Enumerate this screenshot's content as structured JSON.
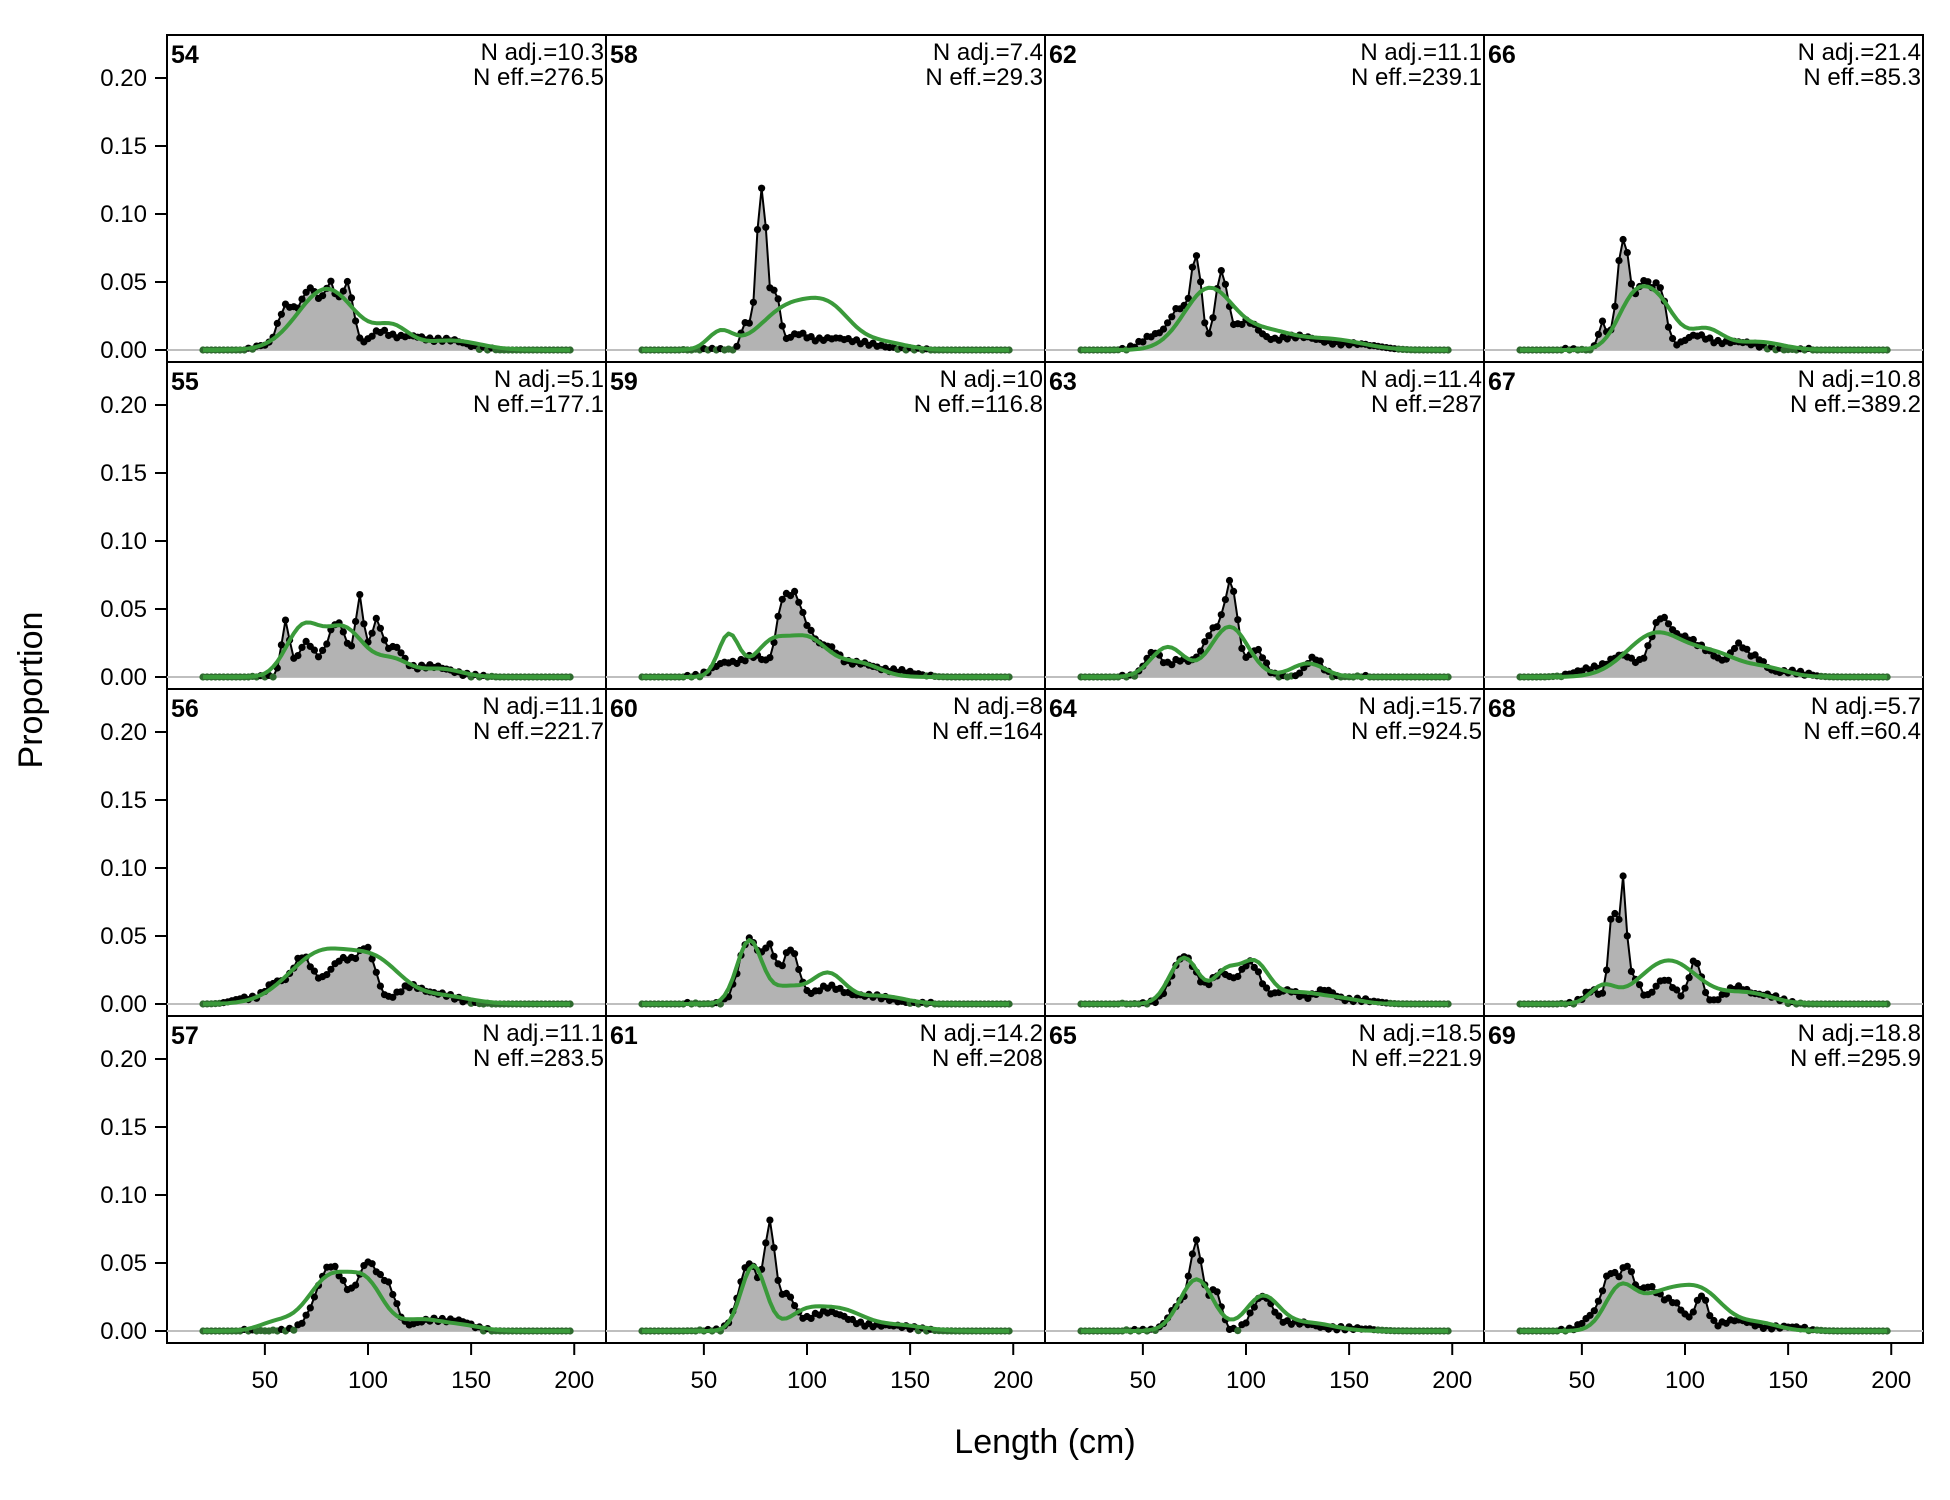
{
  "figure": {
    "xlabel": "Length (cm)",
    "ylabel": "Proportion",
    "colors": {
      "observed_fill": "#b3b3b3",
      "observed_line": "#000000",
      "expected_line": "#3a9a3a",
      "zero_line": "#bfbfbf"
    }
  },
  "chart_data": {
    "type": "area",
    "layout": {
      "rows": 4,
      "cols": 4,
      "order": "column-major"
    },
    "xlim": [
      20,
      200
    ],
    "ylim": [
      0,
      0.23
    ],
    "xticks": [
      50,
      100,
      150,
      200
    ],
    "yticks": [
      0.0,
      0.05,
      0.1,
      0.15,
      0.2
    ],
    "ytick_labels": [
      "0.00",
      "0.05",
      "0.10",
      "0.15",
      "0.20"
    ],
    "bin_width": 2,
    "bin_start": 20,
    "bin_end": 198,
    "series_names": [
      "observed",
      "expected"
    ],
    "panels": [
      {
        "label": "54",
        "n_adj": "N adj.=10.3",
        "n_eff": "N eff.=276.5",
        "observed_peaks": [
          [
            48,
            0.003,
            3
          ],
          [
            60,
            0.03,
            4
          ],
          [
            72,
            0.045,
            5
          ],
          [
            82,
            0.042,
            3
          ],
          [
            90,
            0.048,
            3
          ],
          [
            105,
            0.012,
            5
          ],
          [
            120,
            0.01,
            8
          ],
          [
            140,
            0.007,
            8
          ]
        ],
        "expected_peaks": [
          [
            80,
            0.045,
            14
          ],
          [
            112,
            0.015,
            8
          ],
          [
            140,
            0.007,
            14
          ]
        ]
      },
      {
        "label": "55",
        "n_adj": "N adj.=5.1",
        "n_eff": "N eff.=177.1",
        "observed_peaks": [
          [
            60,
            0.04,
            2
          ],
          [
            70,
            0.025,
            4
          ],
          [
            85,
            0.04,
            5
          ],
          [
            96,
            0.055,
            2
          ],
          [
            104,
            0.04,
            3
          ],
          [
            113,
            0.02,
            4
          ],
          [
            130,
            0.008,
            10
          ]
        ],
        "expected_peaks": [
          [
            68,
            0.034,
            8
          ],
          [
            88,
            0.036,
            10
          ],
          [
            112,
            0.012,
            8
          ],
          [
            135,
            0.006,
            10
          ]
        ]
      },
      {
        "label": "56",
        "n_adj": "N adj.=11.1",
        "n_eff": "N eff.=221.7",
        "observed_peaks": [
          [
            40,
            0.004,
            6
          ],
          [
            55,
            0.015,
            5
          ],
          [
            68,
            0.033,
            5
          ],
          [
            88,
            0.033,
            8
          ],
          [
            100,
            0.03,
            4
          ],
          [
            120,
            0.012,
            6
          ],
          [
            135,
            0.007,
            8
          ]
        ],
        "expected_peaks": [
          [
            78,
            0.038,
            16
          ],
          [
            105,
            0.025,
            12
          ],
          [
            135,
            0.006,
            14
          ]
        ]
      },
      {
        "label": "57",
        "n_adj": "N adj.=11.1",
        "n_eff": "N eff.=283.5",
        "observed_peaks": [
          [
            82,
            0.048,
            7
          ],
          [
            100,
            0.048,
            5
          ],
          [
            110,
            0.028,
            4
          ],
          [
            130,
            0.008,
            8
          ],
          [
            145,
            0.006,
            6
          ]
        ],
        "expected_peaks": [
          [
            55,
            0.006,
            8
          ],
          [
            82,
            0.04,
            11
          ],
          [
            100,
            0.028,
            8
          ],
          [
            125,
            0.008,
            10
          ],
          [
            145,
            0.004,
            10
          ]
        ]
      },
      {
        "label": "58",
        "n_adj": "N adj.=7.4",
        "n_eff": "N eff.=29.3",
        "observed_peaks": [
          [
            78,
            0.12,
            2.5
          ],
          [
            70,
            0.02,
            2
          ],
          [
            85,
            0.04,
            2
          ],
          [
            95,
            0.01,
            5
          ],
          [
            112,
            0.008,
            10
          ],
          [
            130,
            0.003,
            10
          ]
        ],
        "expected_peaks": [
          [
            58,
            0.013,
            6
          ],
          [
            92,
            0.032,
            14
          ],
          [
            112,
            0.022,
            10
          ],
          [
            135,
            0.006,
            12
          ]
        ]
      },
      {
        "label": "59",
        "n_adj": "N adj.=10",
        "n_eff": "N eff.=116.8",
        "observed_peaks": [
          [
            60,
            0.01,
            6
          ],
          [
            75,
            0.015,
            6
          ],
          [
            88,
            0.05,
            3
          ],
          [
            94,
            0.045,
            3
          ],
          [
            100,
            0.03,
            4
          ],
          [
            110,
            0.02,
            5
          ],
          [
            125,
            0.01,
            8
          ],
          [
            145,
            0.004,
            8
          ]
        ],
        "expected_peaks": [
          [
            62,
            0.031,
            5
          ],
          [
            82,
            0.022,
            8
          ],
          [
            100,
            0.028,
            10
          ],
          [
            125,
            0.01,
            10
          ]
        ]
      },
      {
        "label": "60",
        "n_adj": "N adj.=8",
        "n_eff": "N eff.=164",
        "observed_peaks": [
          [
            72,
            0.048,
            5
          ],
          [
            82,
            0.035,
            3
          ],
          [
            92,
            0.04,
            4
          ],
          [
            110,
            0.012,
            7
          ],
          [
            130,
            0.006,
            10
          ]
        ],
        "expected_peaks": [
          [
            72,
            0.046,
            6
          ],
          [
            90,
            0.012,
            8
          ],
          [
            110,
            0.022,
            8
          ],
          [
            135,
            0.006,
            12
          ]
        ]
      },
      {
        "label": "61",
        "n_adj": "N adj.=14.2",
        "n_eff": "N eff.=208",
        "observed_peaks": [
          [
            72,
            0.05,
            5
          ],
          [
            82,
            0.07,
            2.5
          ],
          [
            90,
            0.025,
            4
          ],
          [
            110,
            0.014,
            10
          ],
          [
            140,
            0.004,
            10
          ]
        ],
        "expected_peaks": [
          [
            74,
            0.048,
            6
          ],
          [
            98,
            0.01,
            8
          ],
          [
            115,
            0.016,
            12
          ],
          [
            145,
            0.004,
            12
          ]
        ]
      },
      {
        "label": "62",
        "n_adj": "N adj.=11.1",
        "n_eff": "N eff.=239.1",
        "observed_peaks": [
          [
            55,
            0.01,
            6
          ],
          [
            68,
            0.03,
            5
          ],
          [
            76,
            0.062,
            2.5
          ],
          [
            88,
            0.055,
            3
          ],
          [
            100,
            0.02,
            6
          ],
          [
            125,
            0.01,
            12
          ],
          [
            155,
            0.004,
            10
          ]
        ],
        "expected_peaks": [
          [
            82,
            0.045,
            12
          ],
          [
            110,
            0.012,
            12
          ],
          [
            140,
            0.008,
            16
          ]
        ]
      },
      {
        "label": "63",
        "n_adj": "N adj.=11.4",
        "n_eff": "N eff.=287",
        "observed_peaks": [
          [
            55,
            0.018,
            4
          ],
          [
            68,
            0.012,
            5
          ],
          [
            85,
            0.035,
            6
          ],
          [
            93,
            0.055,
            3
          ],
          [
            105,
            0.02,
            4
          ],
          [
            133,
            0.014,
            4
          ]
        ],
        "expected_peaks": [
          [
            62,
            0.022,
            8
          ],
          [
            92,
            0.037,
            9
          ],
          [
            130,
            0.01,
            8
          ]
        ]
      },
      {
        "label": "64",
        "n_adj": "N adj.=15.7",
        "n_eff": "N eff.=924.5",
        "observed_peaks": [
          [
            70,
            0.035,
            6
          ],
          [
            88,
            0.022,
            5
          ],
          [
            102,
            0.03,
            5
          ],
          [
            120,
            0.01,
            6
          ],
          [
            138,
            0.01,
            5
          ],
          [
            155,
            0.003,
            8
          ]
        ],
        "expected_peaks": [
          [
            70,
            0.034,
            7
          ],
          [
            90,
            0.022,
            6
          ],
          [
            104,
            0.03,
            7
          ],
          [
            125,
            0.008,
            10
          ],
          [
            145,
            0.004,
            10
          ]
        ]
      },
      {
        "label": "65",
        "n_adj": "N adj.=18.5",
        "n_eff": "N eff.=221.9",
        "observed_peaks": [
          [
            68,
            0.02,
            5
          ],
          [
            76,
            0.06,
            3
          ],
          [
            85,
            0.03,
            3
          ],
          [
            108,
            0.025,
            5
          ],
          [
            125,
            0.006,
            8
          ],
          [
            150,
            0.002,
            10
          ]
        ],
        "expected_peaks": [
          [
            76,
            0.038,
            8
          ],
          [
            108,
            0.025,
            8
          ],
          [
            130,
            0.006,
            12
          ]
        ]
      },
      {
        "label": "66",
        "n_adj": "N adj.=21.4",
        "n_eff": "N eff.=85.3",
        "observed_peaks": [
          [
            60,
            0.02,
            2
          ],
          [
            70,
            0.08,
            3
          ],
          [
            80,
            0.05,
            4
          ],
          [
            88,
            0.04,
            3
          ],
          [
            105,
            0.01,
            6
          ],
          [
            125,
            0.006,
            10
          ]
        ],
        "expected_peaks": [
          [
            75,
            0.035,
            8
          ],
          [
            88,
            0.03,
            8
          ],
          [
            110,
            0.015,
            8
          ],
          [
            135,
            0.006,
            12
          ]
        ]
      },
      {
        "label": "67",
        "n_adj": "N adj.=10.8",
        "n_eff": "N eff.=389.2",
        "observed_peaks": [
          [
            55,
            0.006,
            8
          ],
          [
            70,
            0.015,
            6
          ],
          [
            88,
            0.04,
            5
          ],
          [
            100,
            0.025,
            6
          ],
          [
            112,
            0.015,
            6
          ],
          [
            126,
            0.022,
            4
          ],
          [
            135,
            0.012,
            4
          ],
          [
            150,
            0.004,
            8
          ]
        ],
        "expected_peaks": [
          [
            86,
            0.032,
            14
          ],
          [
            115,
            0.015,
            12
          ],
          [
            140,
            0.006,
            10
          ]
        ]
      },
      {
        "label": "68",
        "n_adj": "N adj.=5.7",
        "n_eff": "N eff.=60.4",
        "observed_peaks": [
          [
            55,
            0.01,
            4
          ],
          [
            65,
            0.07,
            2
          ],
          [
            70,
            0.085,
            1.6
          ],
          [
            75,
            0.02,
            3
          ],
          [
            90,
            0.018,
            5
          ],
          [
            105,
            0.032,
            3
          ],
          [
            125,
            0.012,
            6
          ],
          [
            140,
            0.006,
            6
          ]
        ],
        "expected_peaks": [
          [
            60,
            0.012,
            6
          ],
          [
            92,
            0.032,
            14
          ],
          [
            130,
            0.008,
            12
          ]
        ]
      },
      {
        "label": "69",
        "n_adj": "N adj.=18.8",
        "n_eff": "N eff.=295.9",
        "observed_peaks": [
          [
            55,
            0.01,
            5
          ],
          [
            64,
            0.04,
            4
          ],
          [
            72,
            0.035,
            3
          ],
          [
            82,
            0.032,
            6
          ],
          [
            95,
            0.018,
            5
          ],
          [
            108,
            0.025,
            3
          ],
          [
            125,
            0.008,
            8
          ],
          [
            150,
            0.003,
            8
          ]
        ],
        "expected_peaks": [
          [
            68,
            0.026,
            7
          ],
          [
            90,
            0.028,
            14
          ],
          [
            110,
            0.02,
            10
          ],
          [
            135,
            0.006,
            10
          ]
        ]
      }
    ]
  }
}
